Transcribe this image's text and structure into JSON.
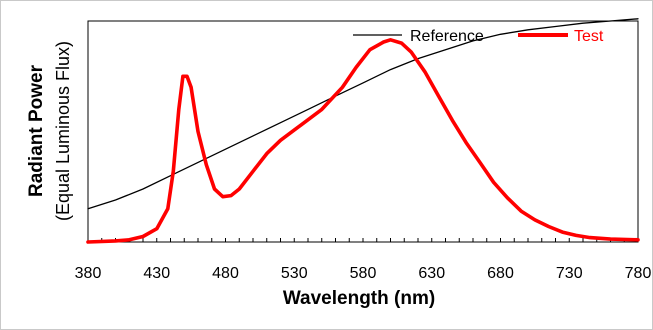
{
  "chart_data": {
    "type": "line",
    "xlabel": "Wavelength (nm)",
    "ylabel": "Radiant Power",
    "ylabel_sub": "(Equal Luminous Flux)",
    "xlim": [
      380,
      780
    ],
    "ylim": [
      0,
      1
    ],
    "x_ticks": [
      "380",
      "430",
      "480",
      "530",
      "580",
      "630",
      "680",
      "730",
      "780"
    ],
    "legend_position": "top-right",
    "series": [
      {
        "name": "Reference",
        "color": "#000000",
        "points": [
          [
            380,
            0.15
          ],
          [
            400,
            0.19
          ],
          [
            420,
            0.24
          ],
          [
            440,
            0.3
          ],
          [
            460,
            0.36
          ],
          [
            480,
            0.42
          ],
          [
            500,
            0.48
          ],
          [
            520,
            0.54
          ],
          [
            540,
            0.6
          ],
          [
            560,
            0.66
          ],
          [
            580,
            0.72
          ],
          [
            600,
            0.78
          ],
          [
            620,
            0.83
          ],
          [
            640,
            0.87
          ],
          [
            660,
            0.91
          ],
          [
            680,
            0.94
          ],
          [
            700,
            0.96
          ],
          [
            720,
            0.975
          ],
          [
            740,
            0.99
          ],
          [
            760,
            1.0
          ],
          [
            780,
            1.01
          ]
        ]
      },
      {
        "name": "Test",
        "color": "#ff0000",
        "points": [
          [
            380,
            0.0
          ],
          [
            400,
            0.005
          ],
          [
            410,
            0.01
          ],
          [
            420,
            0.025
          ],
          [
            430,
            0.06
          ],
          [
            438,
            0.15
          ],
          [
            442,
            0.32
          ],
          [
            446,
            0.6
          ],
          [
            449,
            0.75
          ],
          [
            452,
            0.75
          ],
          [
            455,
            0.7
          ],
          [
            460,
            0.5
          ],
          [
            466,
            0.35
          ],
          [
            472,
            0.24
          ],
          [
            478,
            0.205
          ],
          [
            484,
            0.21
          ],
          [
            490,
            0.24
          ],
          [
            500,
            0.32
          ],
          [
            510,
            0.4
          ],
          [
            520,
            0.46
          ],
          [
            535,
            0.53
          ],
          [
            550,
            0.6
          ],
          [
            565,
            0.7
          ],
          [
            575,
            0.79
          ],
          [
            585,
            0.87
          ],
          [
            595,
            0.905
          ],
          [
            600,
            0.915
          ],
          [
            608,
            0.9
          ],
          [
            615,
            0.86
          ],
          [
            625,
            0.77
          ],
          [
            635,
            0.66
          ],
          [
            645,
            0.55
          ],
          [
            655,
            0.45
          ],
          [
            665,
            0.36
          ],
          [
            675,
            0.27
          ],
          [
            685,
            0.2
          ],
          [
            695,
            0.14
          ],
          [
            705,
            0.1
          ],
          [
            715,
            0.07
          ],
          [
            725,
            0.045
          ],
          [
            735,
            0.03
          ],
          [
            745,
            0.02
          ],
          [
            760,
            0.013
          ],
          [
            780,
            0.01
          ]
        ]
      }
    ]
  }
}
